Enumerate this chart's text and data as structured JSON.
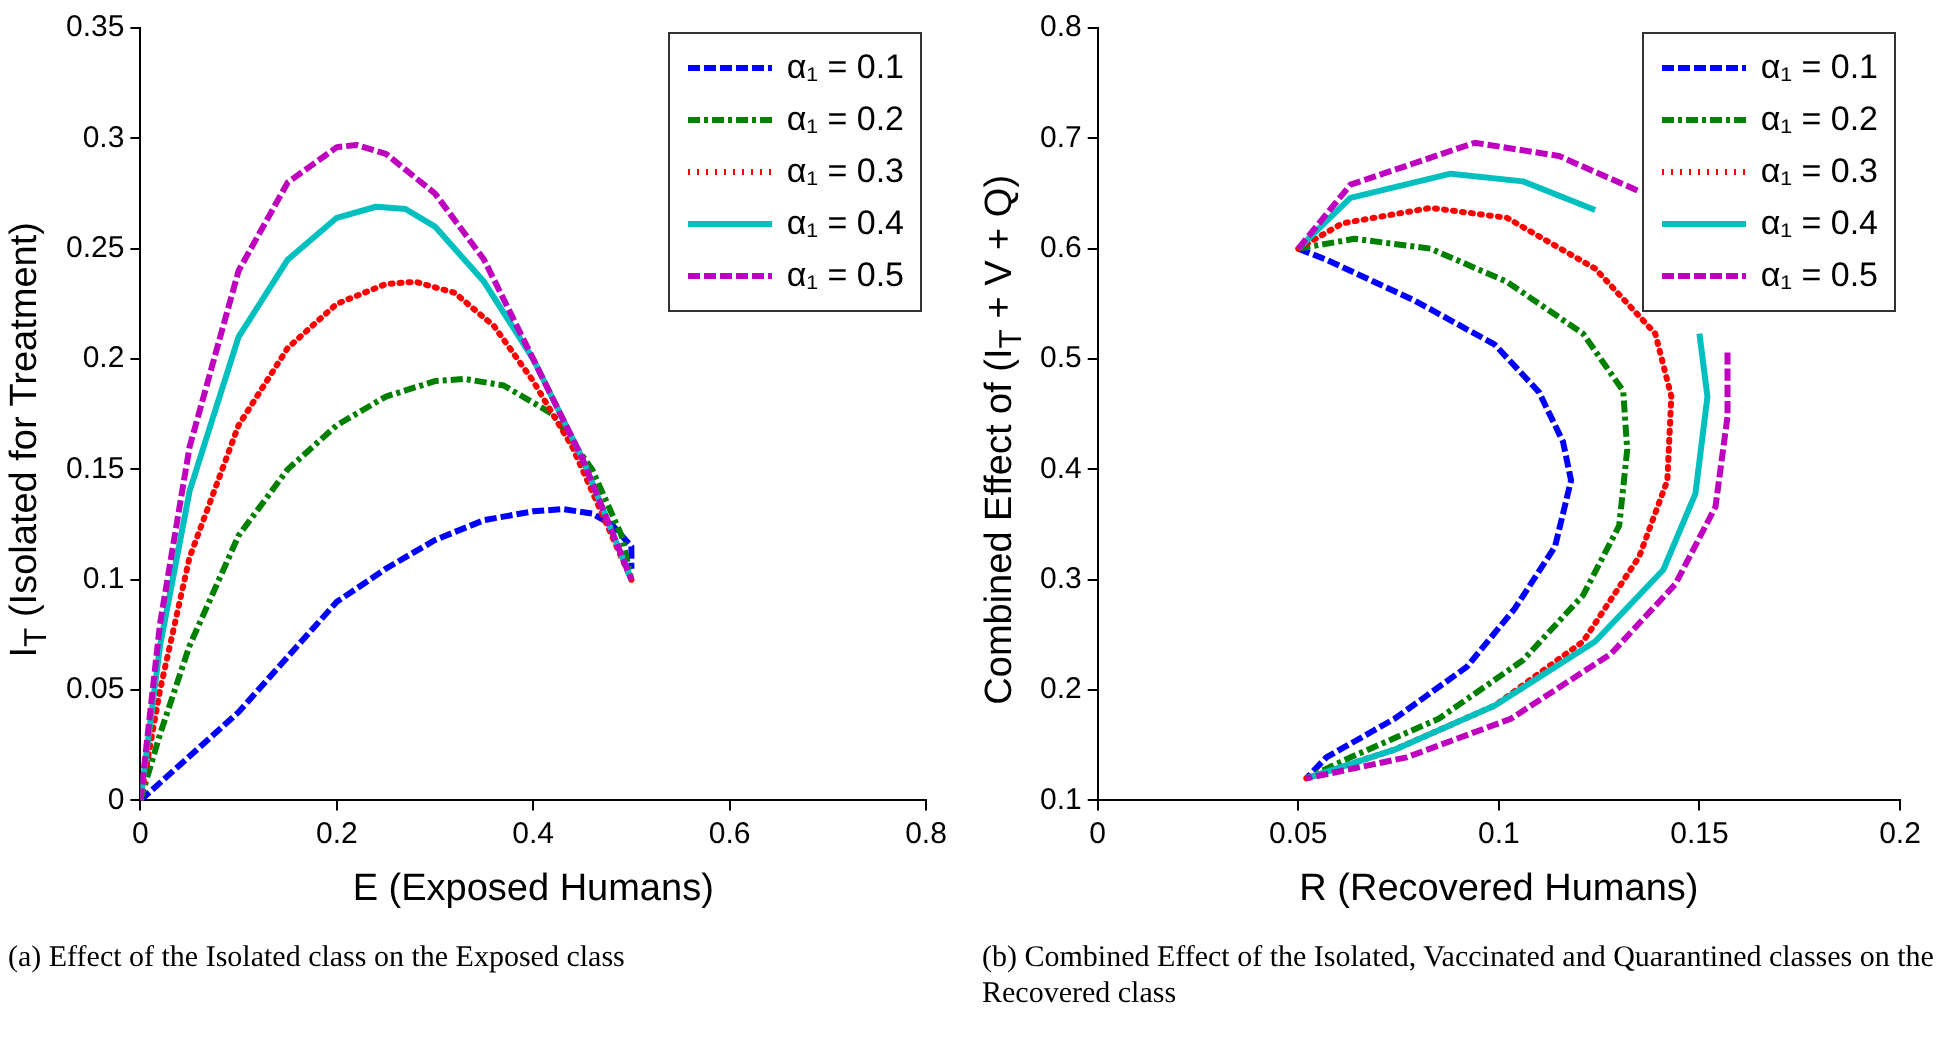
{
  "chart_data": [
    {
      "type": "line",
      "xlabel": "E (Exposed Humans)",
      "ylabel": "I$_{T}$ (Isolated for Treatment)",
      "xlim": [
        0,
        0.8
      ],
      "xticks": [
        0,
        0.2,
        0.4,
        0.6,
        0.8
      ],
      "ylim": [
        0,
        0.35
      ],
      "yticks": [
        0,
        0.05,
        0.1,
        0.15,
        0.2,
        0.25,
        0.3,
        0.35
      ],
      "grid": false,
      "legend": "top right",
      "annotations": [
        "(a) Effect of the Isolated class on the Exposed class"
      ],
      "series": [
        {
          "name": "α₁ = 0.1",
          "color": "#0000ff",
          "line_style": "dashed",
          "x": [
            0,
            0.05,
            0.1,
            0.15,
            0.2,
            0.25,
            0.3,
            0.35,
            0.4,
            0.43,
            0.46,
            0.48,
            0.5,
            0.5
          ],
          "values": [
            0,
            0.02,
            0.04,
            0.065,
            0.09,
            0.105,
            0.118,
            0.127,
            0.131,
            0.132,
            0.13,
            0.125,
            0.115,
            0.105
          ]
        },
        {
          "name": "α₁ = 0.2",
          "color": "#008000",
          "line_style": "dashdot",
          "x": [
            0,
            0.02,
            0.05,
            0.1,
            0.15,
            0.2,
            0.25,
            0.3,
            0.33,
            0.37,
            0.42,
            0.46,
            0.49,
            0.5
          ],
          "values": [
            0,
            0.03,
            0.07,
            0.12,
            0.15,
            0.17,
            0.183,
            0.19,
            0.191,
            0.188,
            0.175,
            0.15,
            0.12,
            0.1
          ]
        },
        {
          "name": "α₁ = 0.3",
          "color": "#ff0000",
          "line_style": "dotted",
          "x": [
            0,
            0.02,
            0.05,
            0.1,
            0.15,
            0.2,
            0.25,
            0.28,
            0.32,
            0.36,
            0.4,
            0.44,
            0.48,
            0.5
          ],
          "values": [
            0,
            0.05,
            0.11,
            0.17,
            0.205,
            0.225,
            0.234,
            0.235,
            0.23,
            0.215,
            0.19,
            0.16,
            0.12,
            0.1
          ]
        },
        {
          "name": "α₁ = 0.4",
          "color": "#00bfbf",
          "line_style": "solid",
          "x": [
            0,
            0.02,
            0.05,
            0.1,
            0.15,
            0.2,
            0.24,
            0.27,
            0.3,
            0.35,
            0.4,
            0.45,
            0.5
          ],
          "values": [
            0,
            0.07,
            0.14,
            0.21,
            0.245,
            0.264,
            0.269,
            0.268,
            0.26,
            0.235,
            0.2,
            0.155,
            0.1
          ]
        },
        {
          "name": "α₁ = 0.5",
          "color": "#bf00bf",
          "line_style": "dashed",
          "x": [
            0,
            0.02,
            0.05,
            0.1,
            0.15,
            0.2,
            0.22,
            0.25,
            0.3,
            0.35,
            0.4,
            0.45,
            0.5
          ],
          "values": [
            0,
            0.08,
            0.16,
            0.24,
            0.28,
            0.296,
            0.297,
            0.293,
            0.275,
            0.245,
            0.2,
            0.155,
            0.1
          ]
        }
      ]
    },
    {
      "type": "line",
      "xlabel": "R (Recovered Humans)",
      "ylabel": "Combined Effect of (I$_{T}$ + V + Q)",
      "xlim": [
        0,
        0.2
      ],
      "xticks": [
        0,
        0.05,
        0.1,
        0.15,
        0.2
      ],
      "ylim": [
        0.1,
        0.8
      ],
      "yticks": [
        0.1,
        0.2,
        0.3,
        0.4,
        0.5,
        0.6,
        0.7,
        0.8
      ],
      "grid": false,
      "legend": "top right",
      "annotations": [
        "(b) Combined Effect of the Isolated, Vaccinated and Quarantined classes on the Recovered class"
      ],
      "series": [
        {
          "name": "α₁ = 0.1",
          "color": "#0000ff",
          "line_style": "dashed",
          "x": [
            0.05,
            0.057,
            0.079,
            0.099,
            0.11,
            0.116,
            0.118,
            0.114,
            0.104,
            0.092,
            0.074,
            0.057,
            0.052
          ],
          "values": [
            0.6,
            0.59,
            0.553,
            0.513,
            0.47,
            0.425,
            0.39,
            0.33,
            0.274,
            0.221,
            0.174,
            0.139,
            0.12
          ]
        },
        {
          "name": "α₁ = 0.2",
          "color": "#008000",
          "line_style": "dashdot",
          "x": [
            0.05,
            0.064,
            0.083,
            0.102,
            0.121,
            0.131,
            0.132,
            0.13,
            0.121,
            0.106,
            0.085,
            0.063,
            0.052
          ],
          "values": [
            0.6,
            0.609,
            0.6,
            0.57,
            0.523,
            0.471,
            0.418,
            0.349,
            0.286,
            0.227,
            0.174,
            0.139,
            0.12
          ]
        },
        {
          "name": "α₁ = 0.3",
          "color": "#ff0000",
          "line_style": "dotted",
          "x": [
            0.05,
            0.061,
            0.083,
            0.102,
            0.124,
            0.139,
            0.143,
            0.142,
            0.135,
            0.121,
            0.099,
            0.074,
            0.052
          ],
          "values": [
            0.6,
            0.623,
            0.637,
            0.628,
            0.582,
            0.523,
            0.466,
            0.39,
            0.321,
            0.244,
            0.186,
            0.146,
            0.12
          ]
        },
        {
          "name": "α₁ = 0.4",
          "color": "#00bfbf",
          "line_style": "solid",
          "x": [
            0.05,
            0.063,
            0.088,
            0.106,
            0.124,
            0.141,
            0.15,
            0.152,
            0.149,
            0.141,
            0.124,
            0.099,
            0.074,
            0.052
          ],
          "values": [
            0.6,
            0.646,
            0.668,
            0.661,
            0.635,
            null,
            0.523,
            0.466,
            0.378,
            0.309,
            0.244,
            0.186,
            0.146,
            0.12
          ]
        },
        {
          "name": "α₁ = 0.5",
          "color": "#bf00bf",
          "line_style": "dashed",
          "x": [
            0.05,
            0.063,
            0.094,
            0.115,
            0.135,
            0.15,
            0.157,
            0.157,
            0.154,
            0.144,
            0.128,
            0.103,
            0.077,
            0.052
          ],
          "values": [
            0.6,
            0.658,
            0.696,
            0.684,
            0.652,
            null,
            0.506,
            0.448,
            0.366,
            0.296,
            0.233,
            0.174,
            0.139,
            0.12
          ]
        }
      ]
    }
  ]
}
